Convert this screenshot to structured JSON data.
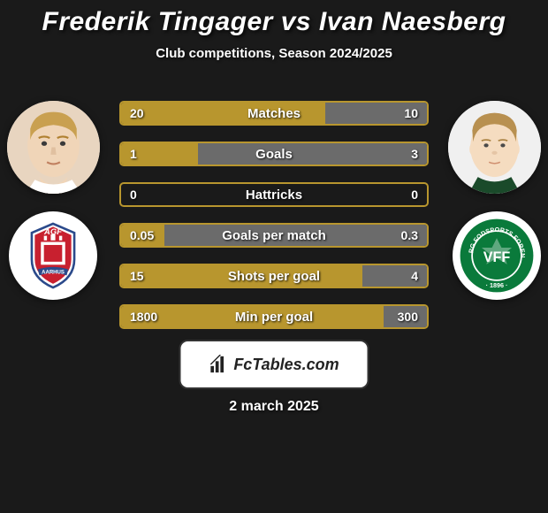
{
  "title": "Frederik Tingager vs Ivan Naesberg",
  "subtitle": "Club competitions, Season 2024/2025",
  "date": "2 march 2025",
  "brand": "FcTables.com",
  "colors": {
    "border": "#b8962e",
    "fill_left": "#b8962e",
    "fill_right": "#6b6b6b"
  },
  "stats": [
    {
      "label": "Matches",
      "left_val": "20",
      "right_val": "10",
      "left_pct": 66.7,
      "right_pct": 33.3
    },
    {
      "label": "Goals",
      "left_val": "1",
      "right_val": "3",
      "left_pct": 25.0,
      "right_pct": 75.0
    },
    {
      "label": "Hattricks",
      "left_val": "0",
      "right_val": "0",
      "left_pct": 0,
      "right_pct": 0
    },
    {
      "label": "Goals per match",
      "left_val": "0.05",
      "right_val": "0.3",
      "left_pct": 14.3,
      "right_pct": 85.7
    },
    {
      "label": "Shots per goal",
      "left_val": "15",
      "right_val": "4",
      "left_pct": 78.9,
      "right_pct": 21.1
    },
    {
      "label": "Min per goal",
      "left_val": "1800",
      "right_val": "300",
      "left_pct": 85.7,
      "right_pct": 14.3
    }
  ],
  "players": {
    "left": {
      "name": "Frederik Tingager",
      "club": "AGF Aarhus",
      "club_colors": {
        "primary": "#c8202f",
        "secondary": "#2b4a8b",
        "text": "#ffffff"
      }
    },
    "right": {
      "name": "Ivan Naesberg",
      "club": "Viborg FF",
      "club_colors": {
        "primary": "#0a7a3b",
        "secondary": "#ffffff",
        "text": "#0a7a3b"
      }
    }
  }
}
